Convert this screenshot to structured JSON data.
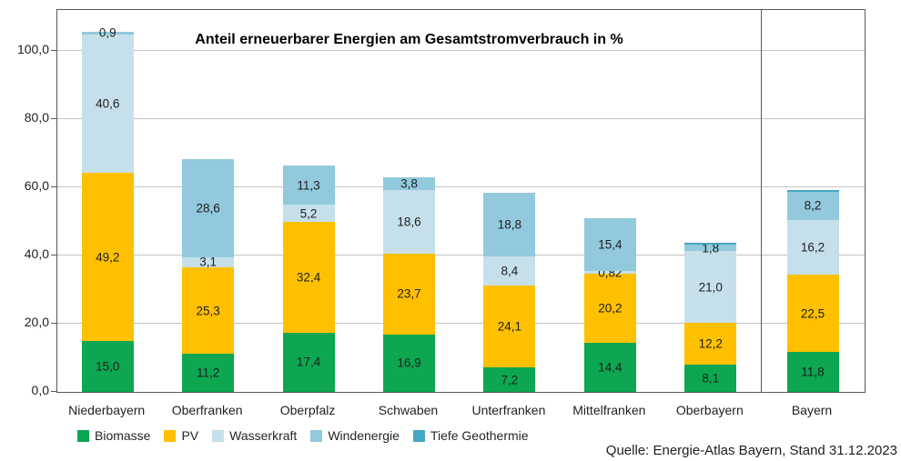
{
  "title": "Anteil erneuerbarer Energien am Gesamtstromverbrauch in %",
  "source": "Quelle: Energie-Atlas Bayern, Stand 31.12.2023",
  "y_axis": {
    "ticks": [
      {
        "value": 0,
        "label": "0,0"
      },
      {
        "value": 20,
        "label": "20,0"
      },
      {
        "value": 40,
        "label": "40,0"
      },
      {
        "value": 60,
        "label": "60,0"
      },
      {
        "value": 80,
        "label": "80,0"
      },
      {
        "value": 100,
        "label": "100,0"
      }
    ]
  },
  "chart_data": {
    "type": "bar",
    "stacked": true,
    "title": "Anteil erneuerbarer Energien am Gesamtstromverbrauch in %",
    "xlabel": "",
    "ylabel": "",
    "ylim": [
      0,
      112
    ],
    "grid": true,
    "legend_position": "bottom",
    "categories": [
      "Niederbayern",
      "Oberfranken",
      "Oberpfalz",
      "Schwaben",
      "Unterfranken",
      "Mittelfranken",
      "Oberbayern",
      "Bayern"
    ],
    "series": [
      {
        "name": "Biomasse",
        "color": "#0ca750",
        "values": [
          15.0,
          11.2,
          17.4,
          16.9,
          7.2,
          14.4,
          8.1,
          11.8
        ],
        "labels": [
          "15,0",
          "11,2",
          "17,4",
          "16,9",
          "7,2",
          "14,4",
          "8,1",
          "11,8"
        ]
      },
      {
        "name": "PV",
        "color": "#ffc000",
        "values": [
          49.2,
          25.3,
          32.4,
          23.7,
          24.1,
          20.2,
          12.2,
          22.5
        ],
        "labels": [
          "49,2",
          "25,3",
          "32,4",
          "23,7",
          "24,1",
          "20,2",
          "12,2",
          "22,5"
        ]
      },
      {
        "name": "Wasserkraft",
        "color": "#c6e0eb",
        "values": [
          40.6,
          3.1,
          5.2,
          18.6,
          8.4,
          0.82,
          21.0,
          16.2
        ],
        "labels": [
          "40,6",
          "3,1",
          "5,2",
          "18,6",
          "8,4",
          "0,82",
          "21,0",
          "16,2"
        ]
      },
      {
        "name": "Windenergie",
        "color": "#92c9dc",
        "values": [
          0.9,
          28.6,
          11.3,
          3.8,
          18.8,
          15.4,
          1.8,
          8.2
        ],
        "labels": [
          "0,9",
          "28,6",
          "11,3",
          "3,8",
          "18,8",
          "15,4",
          "1,8",
          "8,2"
        ]
      },
      {
        "name": "Tiefe Geothermie",
        "color": "#46a7c3",
        "values": [
          0,
          0,
          0,
          0,
          0,
          0,
          0.7,
          0.4
        ],
        "labels": [
          "",
          "",
          "",
          "",
          "",
          "",
          "",
          ""
        ]
      }
    ]
  }
}
